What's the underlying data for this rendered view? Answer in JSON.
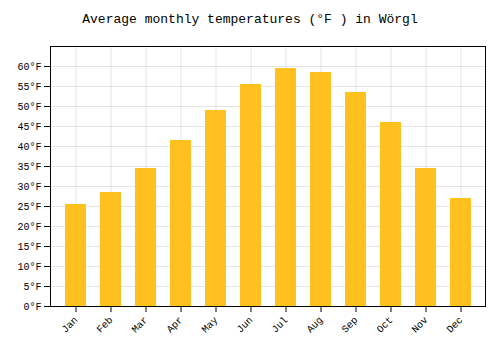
{
  "chart_data": {
    "type": "bar",
    "title": "Average monthly temperatures (°F ) in Wörgl",
    "categories": [
      "Jan",
      "Feb",
      "Mar",
      "Apr",
      "May",
      "Jun",
      "Jul",
      "Aug",
      "Sep",
      "Oct",
      "Nov",
      "Dec"
    ],
    "values": [
      25.5,
      28.5,
      34.5,
      41.5,
      49.0,
      55.5,
      59.5,
      58.5,
      53.5,
      46.0,
      34.5,
      27.0
    ],
    "color": "#FFC020",
    "ylim": [
      0,
      65
    ],
    "yticks": [
      {
        "value": 0,
        "label": "0°F"
      },
      {
        "value": 5,
        "label": "5°F"
      },
      {
        "value": 10,
        "label": "10°F"
      },
      {
        "value": 15,
        "label": "15°F"
      },
      {
        "value": 20,
        "label": "20°F"
      },
      {
        "value": 25,
        "label": "25°F"
      },
      {
        "value": 30,
        "label": "30°F"
      },
      {
        "value": 35,
        "label": "35°F"
      },
      {
        "value": 40,
        "label": "40°F"
      },
      {
        "value": 45,
        "label": "45°F"
      },
      {
        "value": 50,
        "label": "50°F"
      },
      {
        "value": 55,
        "label": "55°F"
      },
      {
        "value": 60,
        "label": "60°F"
      }
    ],
    "grid": true
  }
}
